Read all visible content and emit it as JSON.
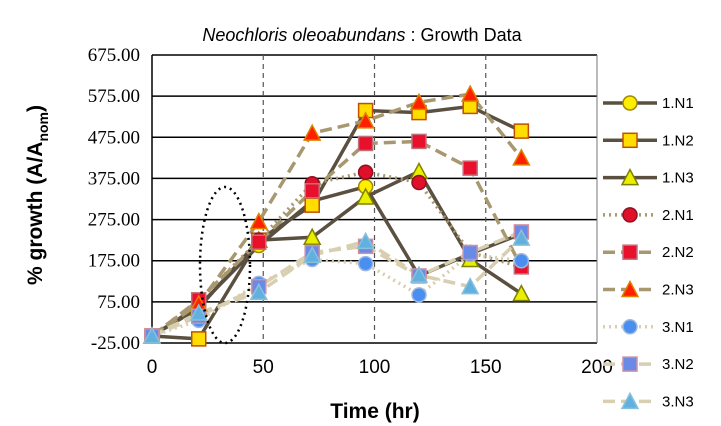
{
  "chart_data": {
    "type": "line",
    "title": {
      "italic": "Neochloris oleoabundans",
      "rest": " :  Growth Data"
    },
    "xlabel": "Time (hr)",
    "ylabel": {
      "main": "% growth (A/A",
      "sub": "nom",
      "close": ")"
    },
    "xlim": [
      0,
      200
    ],
    "ylim": [
      -25,
      675
    ],
    "xticks": [
      "0",
      "50",
      "100",
      "150",
      "200"
    ],
    "xtick_values": [
      0,
      50,
      100,
      150,
      200
    ],
    "yticks": [
      "675.00",
      "575.00",
      "475.00",
      "375.00",
      "275.00",
      "175.00",
      "75.00",
      "-25.00"
    ],
    "ytick_values": [
      675,
      575,
      475,
      375,
      275,
      175,
      75,
      -25
    ],
    "grid": "horizontal solid, vertical dashed",
    "legend_position": "right",
    "annotation": "dotted ellipse around t≈20–45 hr",
    "series": [
      {
        "name": "1.N1",
        "line_color": "#5b5040",
        "dash": "solid",
        "marker": "circle",
        "marker_fill": "#ffee00",
        "marker_stroke": "#a08800",
        "x": [
          0,
          21,
          48,
          72,
          96,
          120,
          143,
          166
        ],
        "y": [
          -8,
          65,
          212,
          320,
          355,
          138,
          192,
          240
        ]
      },
      {
        "name": "1.N2",
        "line_color": "#5b5040",
        "dash": "solid",
        "marker": "square",
        "marker_fill": "#ffdd00",
        "marker_stroke": "#c05000",
        "x": [
          0,
          21,
          48,
          72,
          96,
          120,
          143,
          166
        ],
        "y": [
          -8,
          -15,
          225,
          310,
          540,
          535,
          550,
          490
        ]
      },
      {
        "name": "1.N3",
        "line_color": "#5b5040",
        "dash": "solid",
        "marker": "triangle",
        "marker_fill": "#e8f000",
        "marker_stroke": "#808000",
        "x": [
          0,
          21,
          48,
          72,
          96,
          120,
          143,
          166
        ],
        "y": [
          -8,
          60,
          225,
          232,
          330,
          392,
          178,
          95
        ]
      },
      {
        "name": "2.N1",
        "line_color": "#a89870",
        "dash": "dotted",
        "marker": "circle",
        "marker_fill": "#e0102a",
        "marker_stroke": "#901020",
        "x": [
          0,
          21,
          48,
          72,
          96,
          120,
          143,
          166
        ],
        "y": [
          -8,
          78,
          225,
          362,
          390,
          365,
          195,
          160
        ]
      },
      {
        "name": "2.N2",
        "line_color": "#a89870",
        "dash": "dashed",
        "marker": "square",
        "marker_fill": "#e8102a",
        "marker_stroke": "#c0707a",
        "x": [
          0,
          21,
          48,
          72,
          96,
          120,
          143,
          166
        ],
        "y": [
          -8,
          80,
          220,
          345,
          460,
          465,
          400,
          160
        ]
      },
      {
        "name": "2.N3",
        "line_color": "#a89870",
        "dash": "dashed",
        "marker": "triangle",
        "marker_fill": "#ff2000",
        "marker_stroke": "#e08000",
        "x": [
          0,
          21,
          48,
          72,
          96,
          120,
          143,
          166
        ],
        "y": [
          -8,
          70,
          270,
          485,
          515,
          560,
          580,
          425
        ]
      },
      {
        "name": "3.N1",
        "line_color": "#d8cfb0",
        "dash": "dotted",
        "marker": "circle",
        "marker_fill": "#4a8ff0",
        "marker_stroke": "#9ab8e0",
        "x": [
          0,
          21,
          48,
          72,
          96,
          120,
          143,
          166
        ],
        "y": [
          -8,
          30,
          120,
          178,
          168,
          92,
          190,
          175
        ]
      },
      {
        "name": "3.N2",
        "line_color": "#d8cfb0",
        "dash": "dashed",
        "marker": "square",
        "marker_fill": "#6a8ae8",
        "marker_stroke": "#d090a0",
        "x": [
          0,
          21,
          48,
          72,
          96,
          120,
          143,
          166
        ],
        "y": [
          -8,
          40,
          112,
          195,
          210,
          138,
          195,
          245
        ]
      },
      {
        "name": "3.N3",
        "line_color": "#d8cfb0",
        "dash": "dashed",
        "marker": "triangle",
        "marker_fill": "#60b0e0",
        "marker_stroke": "#8ac0d8",
        "x": [
          0,
          21,
          48,
          72,
          96,
          120,
          143,
          166
        ],
        "y": [
          -8,
          48,
          98,
          188,
          222,
          140,
          112,
          230
        ]
      }
    ]
  }
}
